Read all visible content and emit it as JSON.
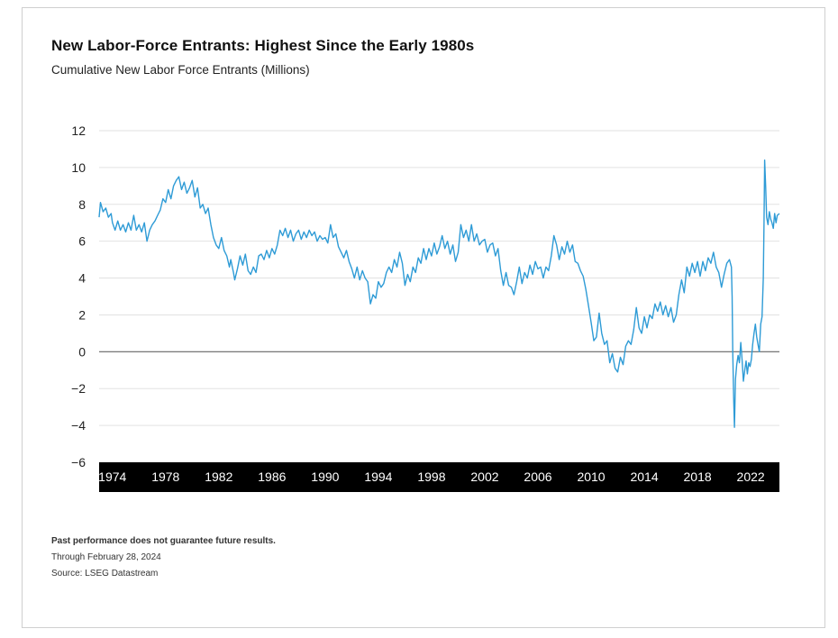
{
  "chart_data": {
    "type": "line",
    "title": "New Labor-Force Entrants: Highest Since the Early 1980s",
    "subtitle": "Cumulative New Labor Force Entrants (Millions)",
    "xlabel": "",
    "ylabel": "",
    "ylim": [
      -6,
      12
    ],
    "xlim": [
      1973.0,
      2024.16
    ],
    "y_ticks": [
      12,
      10,
      8,
      6,
      4,
      2,
      0,
      -2,
      -4,
      -6
    ],
    "y_tick_labels": [
      "12",
      "10",
      "8",
      "6",
      "4",
      "2",
      "0",
      "−2",
      "−4",
      "−6"
    ],
    "x_ticks": [
      1974,
      1978,
      1982,
      1986,
      1990,
      1994,
      1998,
      2002,
      2006,
      2010,
      2014,
      2018,
      2022
    ],
    "x_tick_labels": [
      "1974",
      "1978",
      "1982",
      "1986",
      "1990",
      "1994",
      "1998",
      "2002",
      "2006",
      "2010",
      "2014",
      "2018",
      "2022"
    ],
    "grid": true,
    "line_color": "#2e9bd6",
    "zero_line_color": "#666666",
    "axis_band_color": "#000000",
    "series": [
      {
        "points": [
          [
            1973.0,
            7.3
          ],
          [
            1973.1,
            8.1
          ],
          [
            1973.3,
            7.6
          ],
          [
            1973.5,
            7.8
          ],
          [
            1973.7,
            7.3
          ],
          [
            1973.9,
            7.5
          ],
          [
            1974.0,
            7.0
          ],
          [
            1974.2,
            6.6
          ],
          [
            1974.4,
            7.1
          ],
          [
            1974.6,
            6.6
          ],
          [
            1974.8,
            6.9
          ],
          [
            1975.0,
            6.5
          ],
          [
            1975.2,
            7.0
          ],
          [
            1975.4,
            6.6
          ],
          [
            1975.6,
            7.4
          ],
          [
            1975.8,
            6.6
          ],
          [
            1976.0,
            6.9
          ],
          [
            1976.2,
            6.5
          ],
          [
            1976.4,
            7.0
          ],
          [
            1976.6,
            6.0
          ],
          [
            1976.8,
            6.6
          ],
          [
            1977.0,
            6.9
          ],
          [
            1977.2,
            7.1
          ],
          [
            1977.4,
            7.4
          ],
          [
            1977.6,
            7.7
          ],
          [
            1977.8,
            8.3
          ],
          [
            1978.0,
            8.1
          ],
          [
            1978.2,
            8.8
          ],
          [
            1978.4,
            8.3
          ],
          [
            1978.6,
            9.0
          ],
          [
            1978.8,
            9.3
          ],
          [
            1979.0,
            9.5
          ],
          [
            1979.2,
            8.8
          ],
          [
            1979.4,
            9.2
          ],
          [
            1979.6,
            8.6
          ],
          [
            1979.8,
            8.9
          ],
          [
            1980.0,
            9.3
          ],
          [
            1980.2,
            8.4
          ],
          [
            1980.4,
            8.9
          ],
          [
            1980.6,
            7.8
          ],
          [
            1980.8,
            8.0
          ],
          [
            1981.0,
            7.5
          ],
          [
            1981.2,
            7.8
          ],
          [
            1981.4,
            6.9
          ],
          [
            1981.6,
            6.2
          ],
          [
            1981.8,
            5.8
          ],
          [
            1982.0,
            5.6
          ],
          [
            1982.2,
            6.2
          ],
          [
            1982.4,
            5.5
          ],
          [
            1982.6,
            5.2
          ],
          [
            1982.8,
            4.6
          ],
          [
            1982.9,
            5.0
          ],
          [
            1983.1,
            4.3
          ],
          [
            1983.2,
            3.9
          ],
          [
            1983.4,
            4.5
          ],
          [
            1983.6,
            5.2
          ],
          [
            1983.8,
            4.7
          ],
          [
            1984.0,
            5.3
          ],
          [
            1984.2,
            4.4
          ],
          [
            1984.4,
            4.2
          ],
          [
            1984.6,
            4.6
          ],
          [
            1984.8,
            4.3
          ],
          [
            1985.0,
            5.2
          ],
          [
            1985.2,
            5.3
          ],
          [
            1985.4,
            5.0
          ],
          [
            1985.6,
            5.5
          ],
          [
            1985.8,
            5.1
          ],
          [
            1986.0,
            5.6
          ],
          [
            1986.2,
            5.3
          ],
          [
            1986.4,
            5.8
          ],
          [
            1986.6,
            6.6
          ],
          [
            1986.8,
            6.3
          ],
          [
            1987.0,
            6.7
          ],
          [
            1987.2,
            6.2
          ],
          [
            1987.4,
            6.6
          ],
          [
            1987.6,
            6.0
          ],
          [
            1987.8,
            6.4
          ],
          [
            1988.0,
            6.6
          ],
          [
            1988.2,
            6.1
          ],
          [
            1988.4,
            6.5
          ],
          [
            1988.6,
            6.2
          ],
          [
            1988.8,
            6.6
          ],
          [
            1989.0,
            6.3
          ],
          [
            1989.2,
            6.5
          ],
          [
            1989.4,
            6.0
          ],
          [
            1989.6,
            6.3
          ],
          [
            1989.8,
            6.1
          ],
          [
            1990.0,
            6.2
          ],
          [
            1990.2,
            5.9
          ],
          [
            1990.4,
            6.9
          ],
          [
            1990.6,
            6.2
          ],
          [
            1990.8,
            6.4
          ],
          [
            1991.0,
            5.7
          ],
          [
            1991.2,
            5.4
          ],
          [
            1991.4,
            5.1
          ],
          [
            1991.6,
            5.5
          ],
          [
            1991.8,
            4.9
          ],
          [
            1992.0,
            4.5
          ],
          [
            1992.2,
            4.0
          ],
          [
            1992.4,
            4.6
          ],
          [
            1992.6,
            3.9
          ],
          [
            1992.8,
            4.4
          ],
          [
            1993.0,
            4.0
          ],
          [
            1993.2,
            3.8
          ],
          [
            1993.4,
            2.6
          ],
          [
            1993.6,
            3.1
          ],
          [
            1993.8,
            2.9
          ],
          [
            1994.0,
            3.8
          ],
          [
            1994.2,
            3.5
          ],
          [
            1994.4,
            3.7
          ],
          [
            1994.6,
            4.3
          ],
          [
            1994.8,
            4.6
          ],
          [
            1995.0,
            4.3
          ],
          [
            1995.2,
            5.0
          ],
          [
            1995.4,
            4.6
          ],
          [
            1995.6,
            5.4
          ],
          [
            1995.8,
            4.8
          ],
          [
            1996.0,
            3.6
          ],
          [
            1996.2,
            4.2
          ],
          [
            1996.4,
            3.8
          ],
          [
            1996.6,
            4.6
          ],
          [
            1996.8,
            4.3
          ],
          [
            1997.0,
            5.1
          ],
          [
            1997.2,
            4.8
          ],
          [
            1997.4,
            5.6
          ],
          [
            1997.6,
            5.0
          ],
          [
            1997.8,
            5.6
          ],
          [
            1998.0,
            5.2
          ],
          [
            1998.2,
            5.9
          ],
          [
            1998.4,
            5.3
          ],
          [
            1998.6,
            5.7
          ],
          [
            1998.8,
            6.3
          ],
          [
            1999.0,
            5.6
          ],
          [
            1999.2,
            6.0
          ],
          [
            1999.4,
            5.3
          ],
          [
            1999.6,
            5.8
          ],
          [
            1999.8,
            4.9
          ],
          [
            2000.0,
            5.4
          ],
          [
            2000.2,
            6.9
          ],
          [
            2000.4,
            6.2
          ],
          [
            2000.6,
            6.6
          ],
          [
            2000.8,
            6.0
          ],
          [
            2001.0,
            6.9
          ],
          [
            2001.2,
            6.0
          ],
          [
            2001.4,
            6.4
          ],
          [
            2001.6,
            5.8
          ],
          [
            2001.8,
            6.0
          ],
          [
            2002.0,
            6.1
          ],
          [
            2002.2,
            5.4
          ],
          [
            2002.4,
            5.8
          ],
          [
            2002.6,
            5.9
          ],
          [
            2002.8,
            5.2
          ],
          [
            2003.0,
            5.6
          ],
          [
            2003.2,
            4.4
          ],
          [
            2003.4,
            3.6
          ],
          [
            2003.6,
            4.3
          ],
          [
            2003.8,
            3.6
          ],
          [
            2004.0,
            3.5
          ],
          [
            2004.2,
            3.1
          ],
          [
            2004.4,
            3.8
          ],
          [
            2004.6,
            4.6
          ],
          [
            2004.8,
            3.7
          ],
          [
            2005.0,
            4.3
          ],
          [
            2005.2,
            4.0
          ],
          [
            2005.4,
            4.7
          ],
          [
            2005.6,
            4.2
          ],
          [
            2005.8,
            4.9
          ],
          [
            2006.0,
            4.5
          ],
          [
            2006.2,
            4.6
          ],
          [
            2006.4,
            4.0
          ],
          [
            2006.6,
            4.6
          ],
          [
            2006.8,
            4.4
          ],
          [
            2007.0,
            5.2
          ],
          [
            2007.2,
            6.3
          ],
          [
            2007.4,
            5.8
          ],
          [
            2007.6,
            5.0
          ],
          [
            2007.8,
            5.7
          ],
          [
            2008.0,
            5.3
          ],
          [
            2008.2,
            6.0
          ],
          [
            2008.4,
            5.4
          ],
          [
            2008.6,
            5.8
          ],
          [
            2008.8,
            4.9
          ],
          [
            2009.0,
            4.8
          ],
          [
            2009.2,
            4.4
          ],
          [
            2009.4,
            4.1
          ],
          [
            2009.6,
            3.4
          ],
          [
            2009.8,
            2.5
          ],
          [
            2010.0,
            1.6
          ],
          [
            2010.2,
            0.6
          ],
          [
            2010.4,
            0.8
          ],
          [
            2010.6,
            2.1
          ],
          [
            2010.8,
            1.0
          ],
          [
            2011.0,
            0.4
          ],
          [
            2011.2,
            0.6
          ],
          [
            2011.4,
            -0.6
          ],
          [
            2011.6,
            -0.1
          ],
          [
            2011.8,
            -0.9
          ],
          [
            2012.0,
            -1.1
          ],
          [
            2012.2,
            -0.3
          ],
          [
            2012.4,
            -0.7
          ],
          [
            2012.6,
            0.3
          ],
          [
            2012.8,
            0.6
          ],
          [
            2013.0,
            0.4
          ],
          [
            2013.2,
            1.2
          ],
          [
            2013.4,
            2.4
          ],
          [
            2013.6,
            1.3
          ],
          [
            2013.8,
            1.0
          ],
          [
            2014.0,
            1.9
          ],
          [
            2014.2,
            1.3
          ],
          [
            2014.4,
            2.0
          ],
          [
            2014.6,
            1.8
          ],
          [
            2014.8,
            2.6
          ],
          [
            2015.0,
            2.2
          ],
          [
            2015.2,
            2.7
          ],
          [
            2015.4,
            2.0
          ],
          [
            2015.6,
            2.5
          ],
          [
            2015.8,
            1.9
          ],
          [
            2016.0,
            2.4
          ],
          [
            2016.2,
            1.6
          ],
          [
            2016.4,
            2.0
          ],
          [
            2016.6,
            3.1
          ],
          [
            2016.8,
            3.9
          ],
          [
            2017.0,
            3.2
          ],
          [
            2017.2,
            4.6
          ],
          [
            2017.4,
            4.1
          ],
          [
            2017.6,
            4.8
          ],
          [
            2017.8,
            4.3
          ],
          [
            2018.0,
            4.9
          ],
          [
            2018.2,
            4.1
          ],
          [
            2018.4,
            4.9
          ],
          [
            2018.6,
            4.4
          ],
          [
            2018.8,
            5.1
          ],
          [
            2019.0,
            4.8
          ],
          [
            2019.2,
            5.4
          ],
          [
            2019.4,
            4.6
          ],
          [
            2019.6,
            4.3
          ],
          [
            2019.8,
            3.5
          ],
          [
            2020.0,
            4.2
          ],
          [
            2020.2,
            4.8
          ],
          [
            2020.4,
            5.0
          ],
          [
            2020.55,
            4.6
          ],
          [
            2020.6,
            3.0
          ],
          [
            2020.65,
            0.0
          ],
          [
            2020.72,
            -2.5
          ],
          [
            2020.78,
            -4.1
          ],
          [
            2020.85,
            -1.5
          ],
          [
            2020.95,
            -0.7
          ],
          [
            2021.05,
            -0.2
          ],
          [
            2021.15,
            -0.6
          ],
          [
            2021.25,
            0.5
          ],
          [
            2021.35,
            -0.4
          ],
          [
            2021.45,
            -1.6
          ],
          [
            2021.55,
            -1.0
          ],
          [
            2021.65,
            -0.5
          ],
          [
            2021.75,
            -1.2
          ],
          [
            2021.85,
            -0.6
          ],
          [
            2021.95,
            -0.8
          ],
          [
            2022.05,
            -0.4
          ],
          [
            2022.15,
            0.4
          ],
          [
            2022.25,
            1.0
          ],
          [
            2022.35,
            1.5
          ],
          [
            2022.45,
            0.8
          ],
          [
            2022.55,
            0.4
          ],
          [
            2022.65,
            0.0
          ],
          [
            2022.75,
            1.5
          ],
          [
            2022.85,
            1.9
          ],
          [
            2022.95,
            4.0
          ],
          [
            2023.0,
            7.0
          ],
          [
            2023.05,
            10.4
          ],
          [
            2023.12,
            9.0
          ],
          [
            2023.2,
            7.3
          ],
          [
            2023.3,
            6.9
          ],
          [
            2023.4,
            7.6
          ],
          [
            2023.5,
            7.2
          ],
          [
            2023.6,
            7.0
          ],
          [
            2023.7,
            6.7
          ],
          [
            2023.8,
            7.5
          ],
          [
            2023.9,
            7.0
          ],
          [
            2024.0,
            7.4
          ],
          [
            2024.16,
            7.5
          ]
        ]
      }
    ]
  },
  "notes": {
    "disclaimer": "Past performance does not guarantee future results.",
    "through": "Through February 28, 2024",
    "source": "Source: LSEG Datastream"
  }
}
